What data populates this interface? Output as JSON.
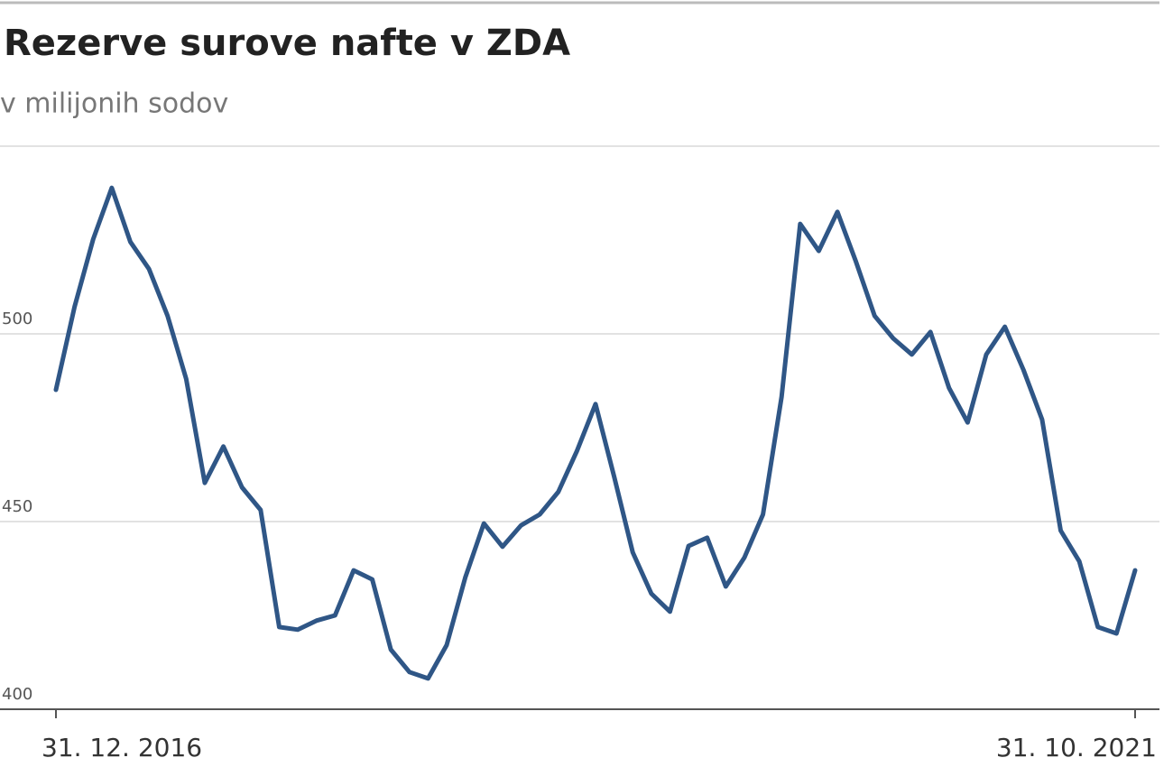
{
  "chart_data": {
    "type": "line",
    "title": "Rezerve surove nafte v ZDA",
    "subtitle": "v milijonih sodov",
    "categories": [
      "31. 12. 2016",
      null,
      null,
      null,
      null,
      null,
      null,
      null,
      null,
      null,
      null,
      null,
      null,
      null,
      null,
      null,
      null,
      null,
      null,
      null,
      null,
      null,
      null,
      null,
      null,
      null,
      null,
      null,
      null,
      null,
      null,
      null,
      null,
      null,
      null,
      null,
      null,
      null,
      null,
      null,
      null,
      null,
      null,
      null,
      null,
      null,
      null,
      null,
      null,
      null,
      null,
      null,
      null,
      null,
      null,
      null,
      null,
      null,
      "31. 10. 2021"
    ],
    "series": [
      {
        "name": "Rezerve",
        "color": "#2f5686",
        "values": [
          485.1,
          507.2,
          525.2,
          538.9,
          524.5,
          517.3,
          504.8,
          488.0,
          460.3,
          470.0,
          459.1,
          453.1,
          421.9,
          421.2,
          423.6,
          425.0,
          437.0,
          434.6,
          415.9,
          409.9,
          408.2,
          417.1,
          435.1,
          449.5,
          443.3,
          449.0,
          451.9,
          457.9,
          468.8,
          481.3,
          462.0,
          441.8,
          430.8,
          426.0,
          443.5,
          445.7,
          432.7,
          440.4,
          451.9,
          483.2,
          529.3,
          522.1,
          532.5,
          519.2,
          504.8,
          498.8,
          494.5,
          500.5,
          485.6,
          476.4,
          494.5,
          501.9,
          490.4,
          477.2,
          447.6,
          439.4,
          421.9,
          420.2,
          437.0
        ]
      }
    ],
    "ylim": [
      400,
      550
    ],
    "yticks": [
      400,
      450,
      500
    ],
    "grid": true
  }
}
